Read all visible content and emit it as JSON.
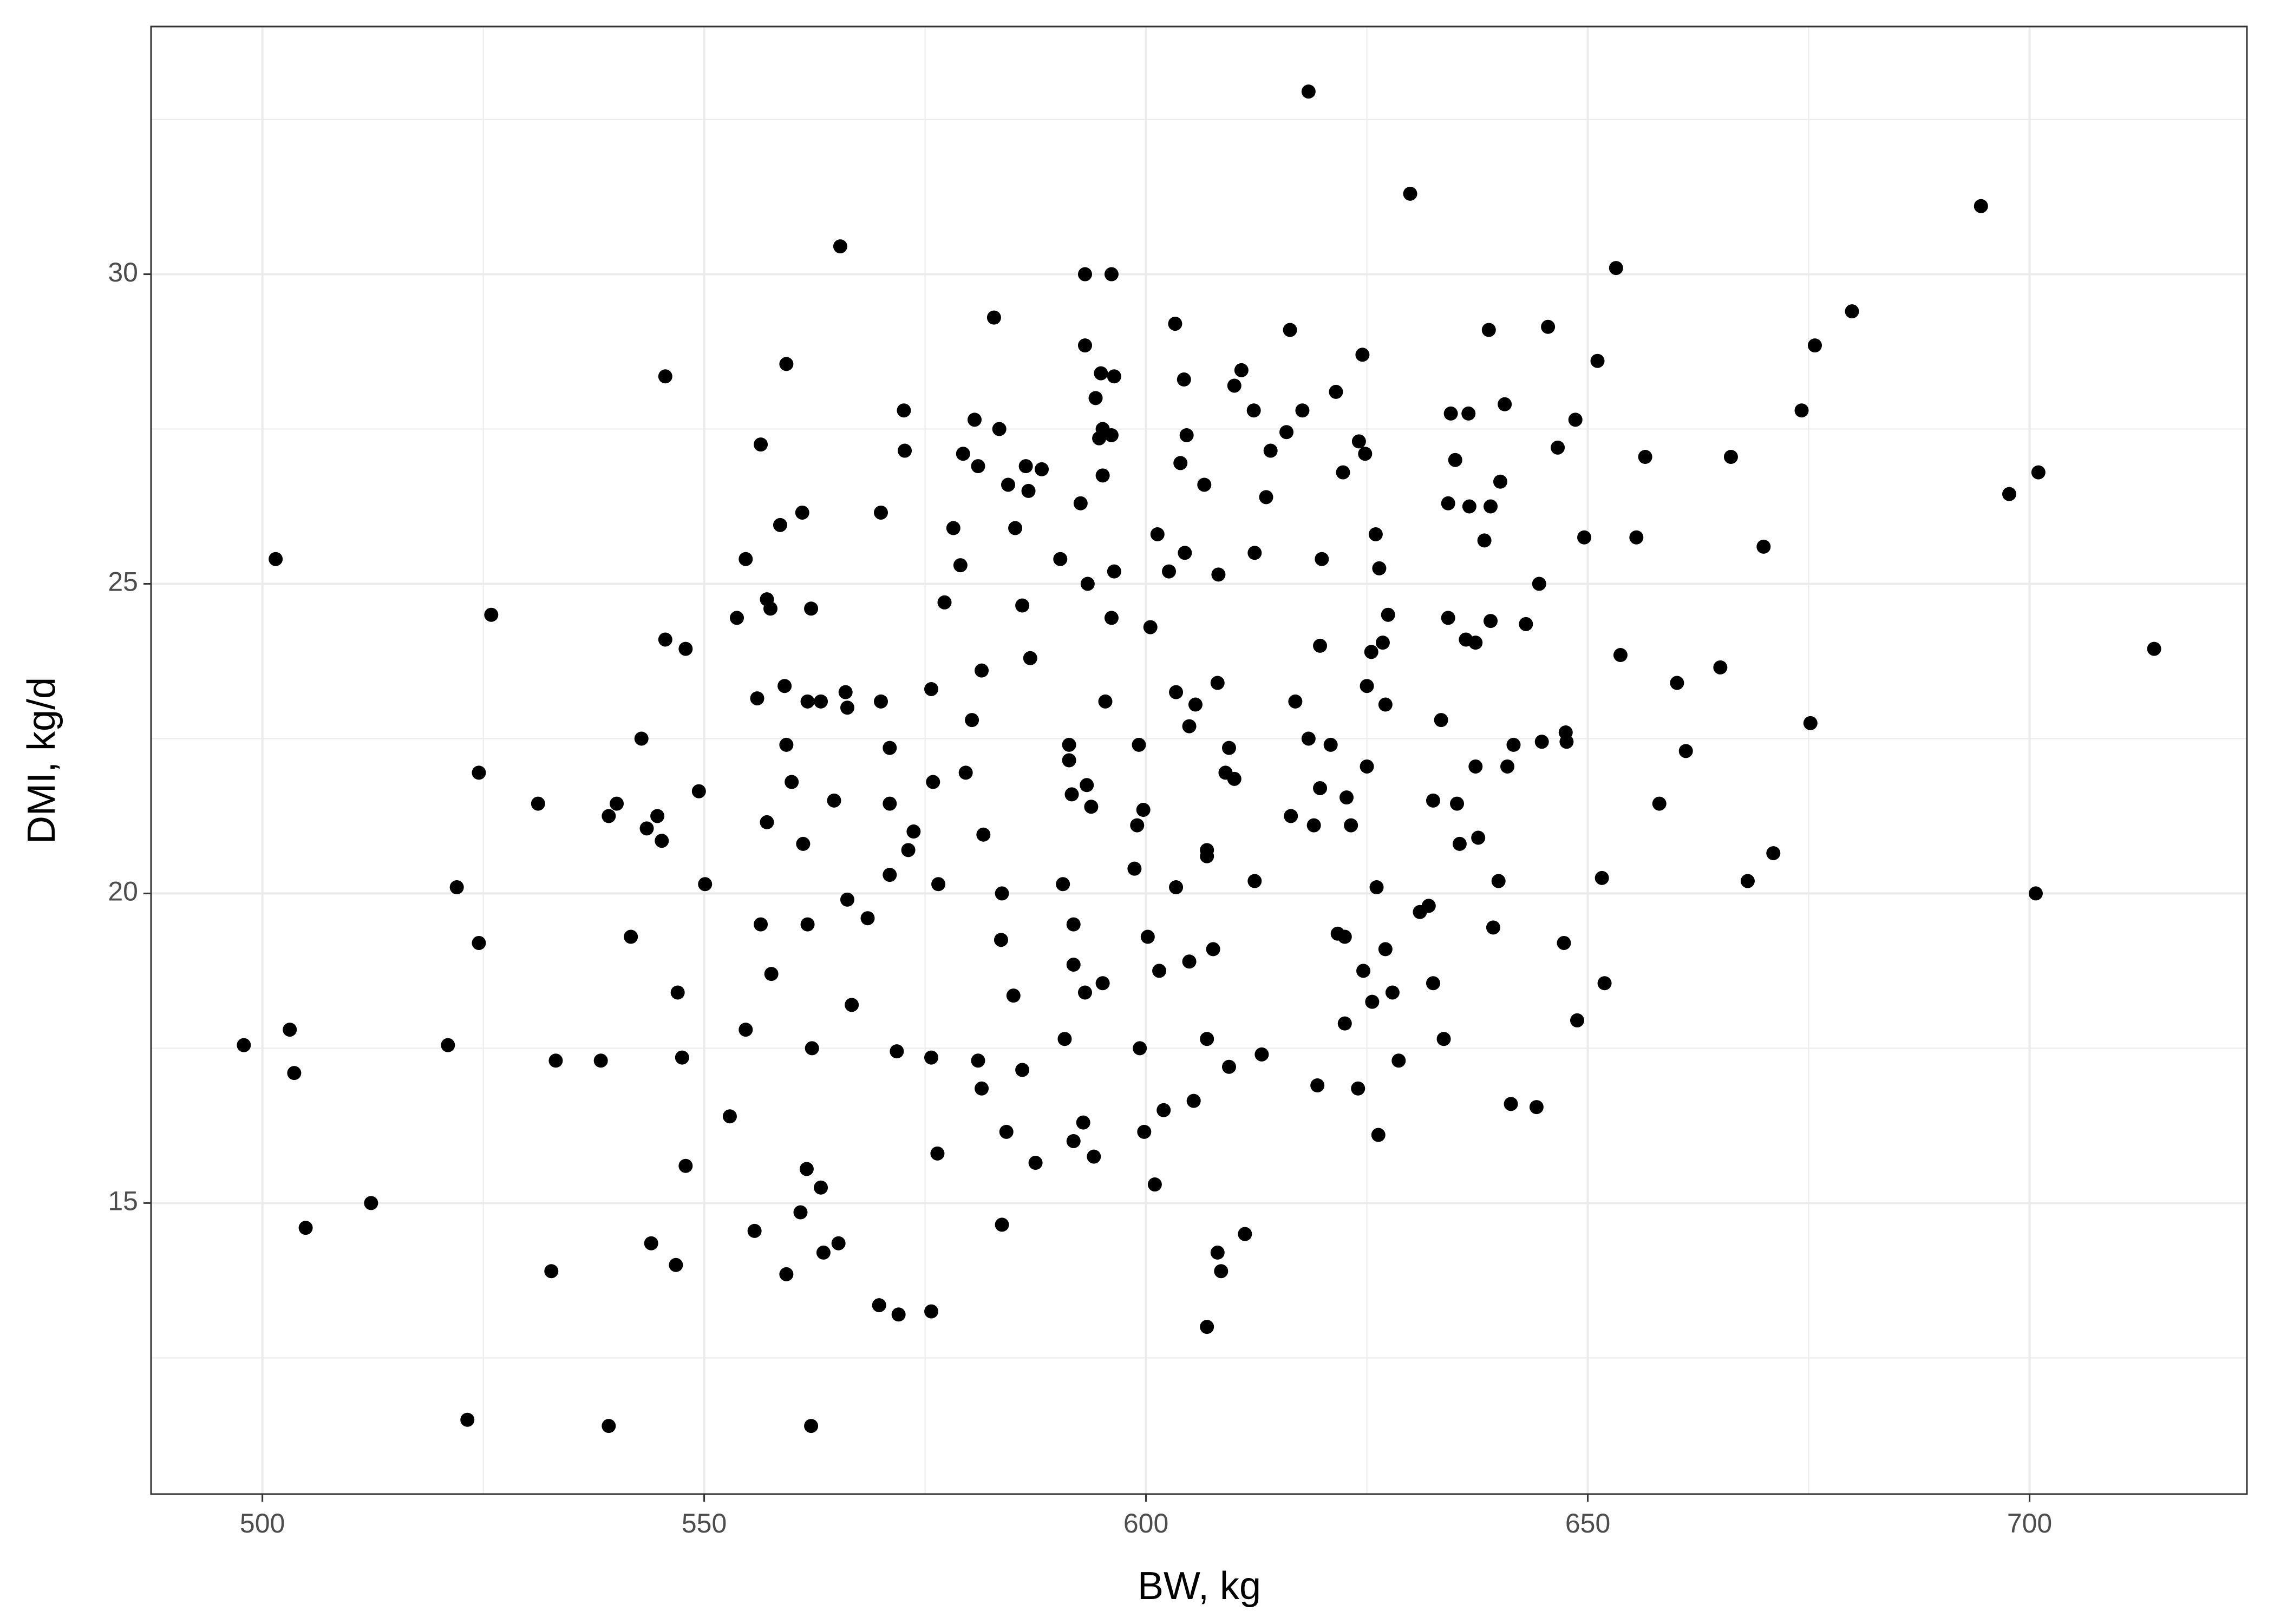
{
  "chart_data": {
    "type": "scatter",
    "x_label": "BW, kg",
    "y_label": "DMI, kg/d",
    "color": "#000000",
    "grid": true,
    "xlim": [
      487.4,
      724.6
    ],
    "ylim": [
      10.3,
      34.0
    ],
    "xticks": [
      500,
      550,
      600,
      650,
      700
    ],
    "yticks": [
      15,
      20,
      25,
      30
    ],
    "xminor": [
      525,
      575,
      625,
      675
    ],
    "yminor": [
      12.5,
      17.5,
      22.5,
      27.5,
      32.5
    ],
    "x": [
      497.9,
      501.5,
      503.1,
      503.6,
      504.9,
      512.3,
      522.0,
      521.0,
      523.2,
      524.5,
      524.5,
      525.9,
      531.2,
      532.7,
      533.2,
      538.3,
      539.2,
      539.2,
      540.1,
      541.7,
      542.9,
      543.5,
      544.7,
      545.2,
      544.0,
      545.6,
      545.6,
      546.8,
      547.0,
      547.5,
      547.9,
      547.9,
      549.4,
      550.1,
      552.9,
      553.7,
      554.7,
      554.7,
      555.7,
      556.0,
      556.4,
      556.4,
      557.1,
      557.5,
      557.1,
      557.6,
      558.6,
      559.1,
      559.3,
      559.3,
      559.3,
      559.9,
      560.9,
      561.1,
      561.2,
      561.6,
      561.7,
      561.7,
      562.1,
      562.2,
      562.1,
      563.2,
      563.2,
      563.5,
      564.7,
      565.2,
      565.4,
      566.0,
      566.2,
      566.2,
      566.7,
      568.5,
      569.8,
      570.0,
      570.0,
      571.0,
      571.0,
      571.0,
      571.8,
      572.0,
      572.6,
      572.7,
      573.1,
      573.7,
      575.7,
      575.7,
      575.7,
      575.9,
      576.4,
      576.5,
      577.2,
      578.2,
      579.0,
      579.3,
      579.6,
      580.3,
      580.6,
      581.0,
      581.0,
      581.4,
      581.4,
      581.6,
      582.8,
      583.4,
      583.7,
      583.6,
      583.7,
      584.2,
      584.4,
      585.0,
      585.2,
      586.0,
      586.0,
      586.4,
      586.7,
      586.9,
      587.5,
      588.2,
      590.3,
      590.6,
      590.8,
      591.3,
      591.3,
      591.6,
      591.8,
      591.8,
      591.8,
      592.6,
      592.9,
      593.1,
      593.1,
      593.1,
      593.3,
      593.4,
      593.8,
      594.1,
      594.3,
      594.9,
      594.7,
      595.1,
      595.1,
      595.1,
      595.4,
      596.1,
      596.1,
      596.1,
      596.4,
      596.4,
      598.7,
      599.0,
      599.2,
      599.3,
      599.7,
      599.8,
      600.2,
      600.5,
      601.0,
      601.3,
      601.5,
      602.0,
      602.6,
      603.3,
      603.4,
      603.4,
      603.9,
      604.3,
      604.4,
      604.6,
      604.9,
      604.9,
      605.4,
      605.6,
      606.6,
      606.9,
      606.9,
      606.9,
      606.9,
      607.6,
      608.1,
      608.1,
      608.2,
      608.5,
      609.0,
      609.4,
      609.4,
      610.0,
      610.0,
      610.8,
      611.2,
      612.2,
      612.3,
      612.3,
      613.1,
      613.6,
      614.1,
      615.9,
      616.3,
      616.4,
      616.9,
      617.7,
      618.4,
      618.4,
      619.0,
      619.4,
      619.7,
      619.7,
      619.9,
      620.9,
      621.5,
      621.7,
      622.3,
      622.5,
      622.7,
      622.5,
      623.2,
      624.0,
      624.1,
      624.5,
      624.8,
      624.6,
      625.0,
      625.0,
      625.5,
      625.6,
      626.0,
      626.1,
      626.3,
      626.4,
      626.8,
      627.1,
      627.1,
      627.4,
      627.9,
      628.6,
      629.9,
      631.0,
      632.0,
      632.5,
      632.5,
      633.4,
      633.7,
      634.2,
      634.2,
      634.5,
      635.0,
      635.2,
      635.5,
      636.2,
      636.5,
      636.6,
      637.3,
      637.3,
      637.6,
      638.3,
      638.8,
      639.0,
      639.0,
      639.3,
      639.9,
      640.1,
      640.6,
      640.9,
      641.3,
      641.6,
      643.0,
      644.2,
      644.5,
      644.8,
      645.5,
      646.6,
      647.3,
      647.5,
      647.6,
      648.6,
      648.8,
      649.6,
      651.1,
      651.6,
      651.9,
      653.2,
      653.7,
      655.5,
      656.5,
      658.1,
      660.1,
      661.1,
      665.0,
      666.2,
      668.1,
      669.9,
      671.0,
      674.2,
      675.2,
      675.7,
      679.9,
      694.5,
      697.7,
      700.7,
      701.0,
      714.1
    ],
    "values": [
      17.55,
      25.4,
      17.8,
      17.1,
      14.6,
      15.0,
      20.1,
      17.55,
      11.5,
      21.95,
      19.2,
      24.5,
      21.45,
      13.9,
      17.3,
      17.3,
      11.4,
      21.25,
      21.45,
      19.3,
      22.5,
      21.05,
      21.25,
      20.85,
      14.35,
      28.35,
      24.1,
      14.0,
      18.4,
      17.35,
      23.95,
      15.6,
      21.65,
      20.15,
      16.4,
      24.45,
      17.8,
      25.4,
      14.55,
      23.15,
      27.25,
      19.5,
      24.75,
      24.6,
      21.15,
      18.7,
      25.95,
      23.35,
      28.55,
      22.4,
      13.85,
      21.8,
      14.85,
      26.15,
      20.8,
      15.55,
      19.5,
      23.1,
      24.6,
      17.5,
      11.4,
      23.1,
      15.25,
      14.2,
      21.5,
      14.35,
      30.45,
      23.25,
      23.0,
      19.9,
      18.2,
      19.6,
      13.35,
      26.15,
      23.1,
      22.35,
      20.3,
      21.45,
      17.45,
      13.2,
      27.8,
      27.15,
      20.7,
      21.0,
      23.3,
      17.35,
      13.25,
      21.8,
      15.8,
      20.15,
      24.7,
      25.9,
      25.3,
      27.1,
      21.95,
      22.8,
      27.65,
      26.9,
      17.3,
      16.85,
      23.6,
      20.95,
      29.3,
      27.5,
      20.0,
      19.25,
      14.65,
      16.15,
      26.6,
      18.35,
      25.9,
      24.65,
      17.15,
      26.9,
      26.5,
      23.8,
      15.65,
      26.85,
      25.4,
      20.15,
      17.65,
      22.4,
      22.15,
      21.6,
      19.5,
      18.85,
      16.0,
      26.3,
      16.3,
      30.0,
      28.85,
      18.4,
      21.75,
      25.0,
      21.4,
      15.75,
      28.0,
      28.4,
      27.35,
      27.5,
      26.75,
      18.55,
      23.1,
      30.0,
      27.4,
      24.45,
      28.35,
      25.2,
      20.4,
      21.1,
      22.4,
      17.5,
      21.35,
      16.15,
      19.3,
      24.3,
      15.3,
      25.8,
      18.75,
      16.5,
      25.2,
      29.2,
      20.1,
      23.25,
      26.95,
      28.3,
      25.5,
      27.4,
      22.7,
      18.9,
      16.65,
      23.05,
      26.6,
      20.7,
      20.6,
      17.65,
      13.0,
      19.1,
      23.4,
      14.2,
      25.15,
      13.9,
      21.95,
      22.35,
      17.2,
      28.2,
      21.85,
      28.45,
      14.5,
      27.8,
      25.5,
      20.2,
      17.4,
      26.4,
      27.15,
      27.45,
      29.1,
      21.25,
      23.1,
      27.8,
      32.95,
      22.5,
      21.1,
      16.9,
      24.0,
      21.7,
      25.4,
      22.4,
      28.1,
      19.35,
      26.8,
      19.3,
      21.55,
      17.9,
      21.1,
      16.85,
      27.3,
      28.7,
      27.1,
      18.75,
      22.05,
      23.35,
      23.9,
      18.25,
      25.8,
      20.1,
      16.1,
      25.25,
      24.05,
      19.1,
      23.05,
      24.5,
      18.4,
      17.3,
      31.3,
      19.7,
      19.8,
      21.5,
      18.55,
      22.8,
      17.65,
      26.3,
      24.45,
      27.75,
      27.0,
      21.45,
      20.8,
      24.1,
      27.75,
      26.25,
      24.05,
      22.05,
      20.9,
      25.7,
      29.1,
      26.25,
      24.4,
      19.45,
      20.2,
      26.65,
      27.9,
      22.05,
      16.6,
      22.4,
      24.35,
      16.55,
      25.0,
      22.45,
      29.15,
      27.2,
      19.2,
      22.6,
      22.45,
      27.65,
      17.95,
      25.75,
      28.6,
      20.25,
      18.55,
      30.1,
      23.85,
      25.75,
      27.05,
      21.45,
      23.4,
      22.3,
      23.65,
      27.05,
      20.2,
      25.6,
      20.65,
      27.8,
      22.75,
      28.85,
      29.4,
      31.1,
      26.45,
      20.0,
      26.8,
      23.95
    ]
  }
}
